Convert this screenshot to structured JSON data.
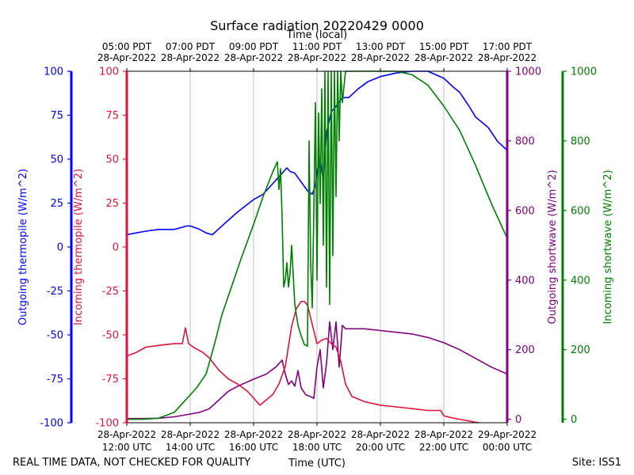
{
  "chart_data": {
    "type": "line",
    "title": "Surface radiation 20220429 0000",
    "top_axis_label": "Time (local)",
    "top_ticks": [
      {
        "t": 0,
        "line1": "05:00 PDT",
        "line2": "28-Apr-2022"
      },
      {
        "t": 2,
        "line1": "07:00 PDT",
        "line2": "28-Apr-2022"
      },
      {
        "t": 4,
        "line1": "09:00 PDT",
        "line2": "28-Apr-2022"
      },
      {
        "t": 6,
        "line1": "11:00 PDT",
        "line2": "28-Apr-2022"
      },
      {
        "t": 8,
        "line1": "13:00 PDT",
        "line2": "28-Apr-2022"
      },
      {
        "t": 10,
        "line1": "15:00 PDT",
        "line2": "28-Apr-2022"
      },
      {
        "t": 12,
        "line1": "17:00 PDT",
        "line2": "28-Apr-2022"
      }
    ],
    "xlabel": "Time (UTC)",
    "bottom_ticks": [
      {
        "t": 0,
        "line1": "28-Apr-2022",
        "line2": "12:00 UTC"
      },
      {
        "t": 2,
        "line1": "28-Apr-2022",
        "line2": "14:00 UTC"
      },
      {
        "t": 4,
        "line1": "28-Apr-2022",
        "line2": "16:00 UTC"
      },
      {
        "t": 6,
        "line1": "28-Apr-2022",
        "line2": "18:00 UTC"
      },
      {
        "t": 8,
        "line1": "28-Apr-2022",
        "line2": "20:00 UTC"
      },
      {
        "t": 10,
        "line1": "28-Apr-2022",
        "line2": "22:00 UTC"
      },
      {
        "t": 12,
        "line1": "29-Apr-2022",
        "line2": "00:00 UTC"
      }
    ],
    "xlim": [
      0,
      12
    ],
    "grid": "vertical",
    "axes": {
      "outgoing_thermopile": {
        "label": "Outgoing thermopile (W/m^2)",
        "color": "#0000ff",
        "ylim": [
          -100,
          100
        ],
        "ticks": [
          "100",
          "75",
          "50",
          "25",
          "0",
          "-25",
          "-50",
          "-75",
          "-100"
        ],
        "tick_values": [
          100,
          75,
          50,
          25,
          0,
          -25,
          -50,
          -75,
          -100
        ]
      },
      "incoming_thermopile": {
        "label": "Incoming thermopile (W/m^2)",
        "color": "#dc143c",
        "ylim": [
          -100,
          100
        ],
        "ticks": [
          "100",
          "75",
          "50",
          "25",
          "0",
          "-25",
          "-50",
          "-75",
          "-100"
        ],
        "tick_values": [
          100,
          75,
          50,
          25,
          0,
          -25,
          -50,
          -75,
          -100
        ]
      },
      "outgoing_shortwave": {
        "label": "Outgoing shortwave (W/m^2)",
        "color": "#800080",
        "ylim": [
          -10,
          1000
        ],
        "ticks": [
          "1000",
          "800",
          "600",
          "400",
          "200",
          "0"
        ],
        "tick_values": [
          1000,
          800,
          600,
          400,
          200,
          0
        ]
      },
      "incoming_shortwave": {
        "label": "Incoming shortwave (W/m^2)",
        "color": "#008000",
        "ylim": [
          -10,
          1000
        ],
        "ticks": [
          "1000",
          "800",
          "600",
          "400",
          "200",
          "0"
        ],
        "tick_values": [
          1000,
          800,
          600,
          400,
          200,
          0
        ]
      }
    },
    "series": [
      {
        "name": "Outgoing thermopile",
        "axis": "outgoing_thermopile",
        "color": "#0000ff",
        "points": [
          [
            0,
            7
          ],
          [
            0.3,
            8
          ],
          [
            0.6,
            9
          ],
          [
            1,
            10
          ],
          [
            1.5,
            10
          ],
          [
            1.9,
            12
          ],
          [
            2,
            12
          ],
          [
            2.3,
            10
          ],
          [
            2.5,
            8
          ],
          [
            2.7,
            7
          ],
          [
            3,
            12
          ],
          [
            3.5,
            20
          ],
          [
            4,
            27
          ],
          [
            4.3,
            30
          ],
          [
            4.6,
            36
          ],
          [
            4.9,
            42
          ],
          [
            5.05,
            45
          ],
          [
            5.15,
            43
          ],
          [
            5.3,
            42
          ],
          [
            5.5,
            37
          ],
          [
            5.7,
            32
          ],
          [
            5.85,
            30
          ],
          [
            5.95,
            35
          ],
          [
            6,
            43
          ],
          [
            6.1,
            50
          ],
          [
            6.2,
            38
          ],
          [
            6.3,
            65
          ],
          [
            6.45,
            77
          ],
          [
            6.6,
            80
          ],
          [
            6.8,
            85
          ],
          [
            7.0,
            85
          ],
          [
            7.3,
            90
          ],
          [
            7.6,
            94
          ],
          [
            8,
            97
          ],
          [
            8.5,
            99
          ],
          [
            9,
            100
          ],
          [
            9.5,
            100
          ],
          [
            10,
            96
          ],
          [
            10.3,
            91
          ],
          [
            10.5,
            88
          ],
          [
            10.8,
            80
          ],
          [
            11,
            74
          ],
          [
            11.4,
            68
          ],
          [
            11.7,
            60
          ],
          [
            12,
            55
          ]
        ]
      },
      {
        "name": "Incoming thermopile",
        "axis": "incoming_thermopile",
        "color": "#dc143c",
        "points": [
          [
            0,
            -62
          ],
          [
            0.3,
            -60
          ],
          [
            0.6,
            -57
          ],
          [
            1,
            -56
          ],
          [
            1.5,
            -55
          ],
          [
            1.75,
            -55
          ],
          [
            1.85,
            -46
          ],
          [
            1.95,
            -55
          ],
          [
            2.1,
            -57
          ],
          [
            2.4,
            -60
          ],
          [
            2.6,
            -63
          ],
          [
            2.9,
            -70
          ],
          [
            3.2,
            -75
          ],
          [
            3.5,
            -78
          ],
          [
            3.8,
            -82
          ],
          [
            4,
            -86
          ],
          [
            4.2,
            -90
          ],
          [
            4.4,
            -87
          ],
          [
            4.6,
            -84
          ],
          [
            4.8,
            -78
          ],
          [
            5,
            -68
          ],
          [
            5.2,
            -45
          ],
          [
            5.35,
            -35
          ],
          [
            5.5,
            -31
          ],
          [
            5.6,
            -31
          ],
          [
            5.7,
            -33
          ],
          [
            5.85,
            -44
          ],
          [
            6,
            -55
          ],
          [
            6.15,
            -53
          ],
          [
            6.3,
            -52
          ],
          [
            6.45,
            -55
          ],
          [
            6.6,
            -57
          ],
          [
            6.75,
            -65
          ],
          [
            6.9,
            -78
          ],
          [
            7.1,
            -85
          ],
          [
            7.5,
            -88
          ],
          [
            8,
            -90
          ],
          [
            8.5,
            -91
          ],
          [
            9,
            -92
          ],
          [
            9.5,
            -93
          ],
          [
            9.9,
            -93
          ],
          [
            10,
            -96
          ],
          [
            10.2,
            -97
          ],
          [
            10.5,
            -98
          ],
          [
            10.8,
            -99
          ],
          [
            11.1,
            -100
          ]
        ]
      },
      {
        "name": "Outgoing shortwave",
        "axis": "outgoing_shortwave",
        "color": "#800080",
        "points": [
          [
            0,
            2
          ],
          [
            0.5,
            2
          ],
          [
            1,
            3
          ],
          [
            1.5,
            7
          ],
          [
            2,
            15
          ],
          [
            2.3,
            20
          ],
          [
            2.6,
            30
          ],
          [
            2.9,
            55
          ],
          [
            3.2,
            80
          ],
          [
            3.5,
            95
          ],
          [
            4,
            115
          ],
          [
            4.4,
            130
          ],
          [
            4.7,
            150
          ],
          [
            4.9,
            170
          ],
          [
            5.0,
            130
          ],
          [
            5.1,
            100
          ],
          [
            5.2,
            110
          ],
          [
            5.3,
            95
          ],
          [
            5.4,
            140
          ],
          [
            5.5,
            90
          ],
          [
            5.65,
            70
          ],
          [
            5.8,
            65
          ],
          [
            5.9,
            60
          ],
          [
            6.0,
            150
          ],
          [
            6.1,
            200
          ],
          [
            6.2,
            90
          ],
          [
            6.3,
            160
          ],
          [
            6.4,
            280
          ],
          [
            6.5,
            200
          ],
          [
            6.6,
            280
          ],
          [
            6.7,
            150
          ],
          [
            6.8,
            270
          ],
          [
            6.9,
            260
          ],
          [
            7.0,
            260
          ],
          [
            7.5,
            260
          ],
          [
            8,
            255
          ],
          [
            8.5,
            250
          ],
          [
            9,
            245
          ],
          [
            9.5,
            235
          ],
          [
            10,
            220
          ],
          [
            10.5,
            200
          ],
          [
            11,
            175
          ],
          [
            11.5,
            150
          ],
          [
            12,
            130
          ]
        ]
      },
      {
        "name": "Incoming shortwave",
        "axis": "incoming_shortwave",
        "color": "#008000",
        "points": [
          [
            0,
            0
          ],
          [
            0.5,
            0
          ],
          [
            1,
            3
          ],
          [
            1.5,
            20
          ],
          [
            2,
            70
          ],
          [
            2.2,
            90
          ],
          [
            2.5,
            130
          ],
          [
            2.75,
            210
          ],
          [
            3,
            300
          ],
          [
            3.3,
            380
          ],
          [
            3.6,
            460
          ],
          [
            4,
            560
          ],
          [
            4.3,
            640
          ],
          [
            4.6,
            710
          ],
          [
            4.75,
            740
          ],
          [
            4.8,
            660
          ],
          [
            4.85,
            720
          ],
          [
            4.9,
            580
          ],
          [
            4.95,
            380
          ],
          [
            5.0,
            400
          ],
          [
            5.05,
            450
          ],
          [
            5.1,
            380
          ],
          [
            5.15,
            420
          ],
          [
            5.2,
            500
          ],
          [
            5.3,
            330
          ],
          [
            5.4,
            270
          ],
          [
            5.5,
            240
          ],
          [
            5.6,
            215
          ],
          [
            5.7,
            210
          ],
          [
            5.75,
            800
          ],
          [
            5.8,
            450
          ],
          [
            5.85,
            320
          ],
          [
            5.9,
            600
          ],
          [
            5.95,
            910
          ],
          [
            6.0,
            400
          ],
          [
            6.05,
            880
          ],
          [
            6.1,
            620
          ],
          [
            6.15,
            950
          ],
          [
            6.2,
            500
          ],
          [
            6.25,
            1000
          ],
          [
            6.3,
            380
          ],
          [
            6.35,
            1000
          ],
          [
            6.4,
            330
          ],
          [
            6.45,
            1000
          ],
          [
            6.5,
            470
          ],
          [
            6.55,
            1000
          ],
          [
            6.6,
            640
          ],
          [
            6.65,
            1000
          ],
          [
            6.7,
            800
          ],
          [
            6.75,
            1000
          ],
          [
            6.8,
            910
          ],
          [
            6.9,
            1000
          ],
          [
            7.2,
            1000
          ],
          [
            7.6,
            1000
          ],
          [
            8,
            1000
          ],
          [
            8.5,
            1000
          ],
          [
            9,
            990
          ],
          [
            9.5,
            960
          ],
          [
            10,
            900
          ],
          [
            10.5,
            830
          ],
          [
            11,
            730
          ],
          [
            11.5,
            620
          ],
          [
            12,
            520
          ]
        ]
      }
    ],
    "footer_left": "REAL TIME DATA, NOT CHECKED FOR QUALITY",
    "footer_right": "Site: ISS1"
  }
}
